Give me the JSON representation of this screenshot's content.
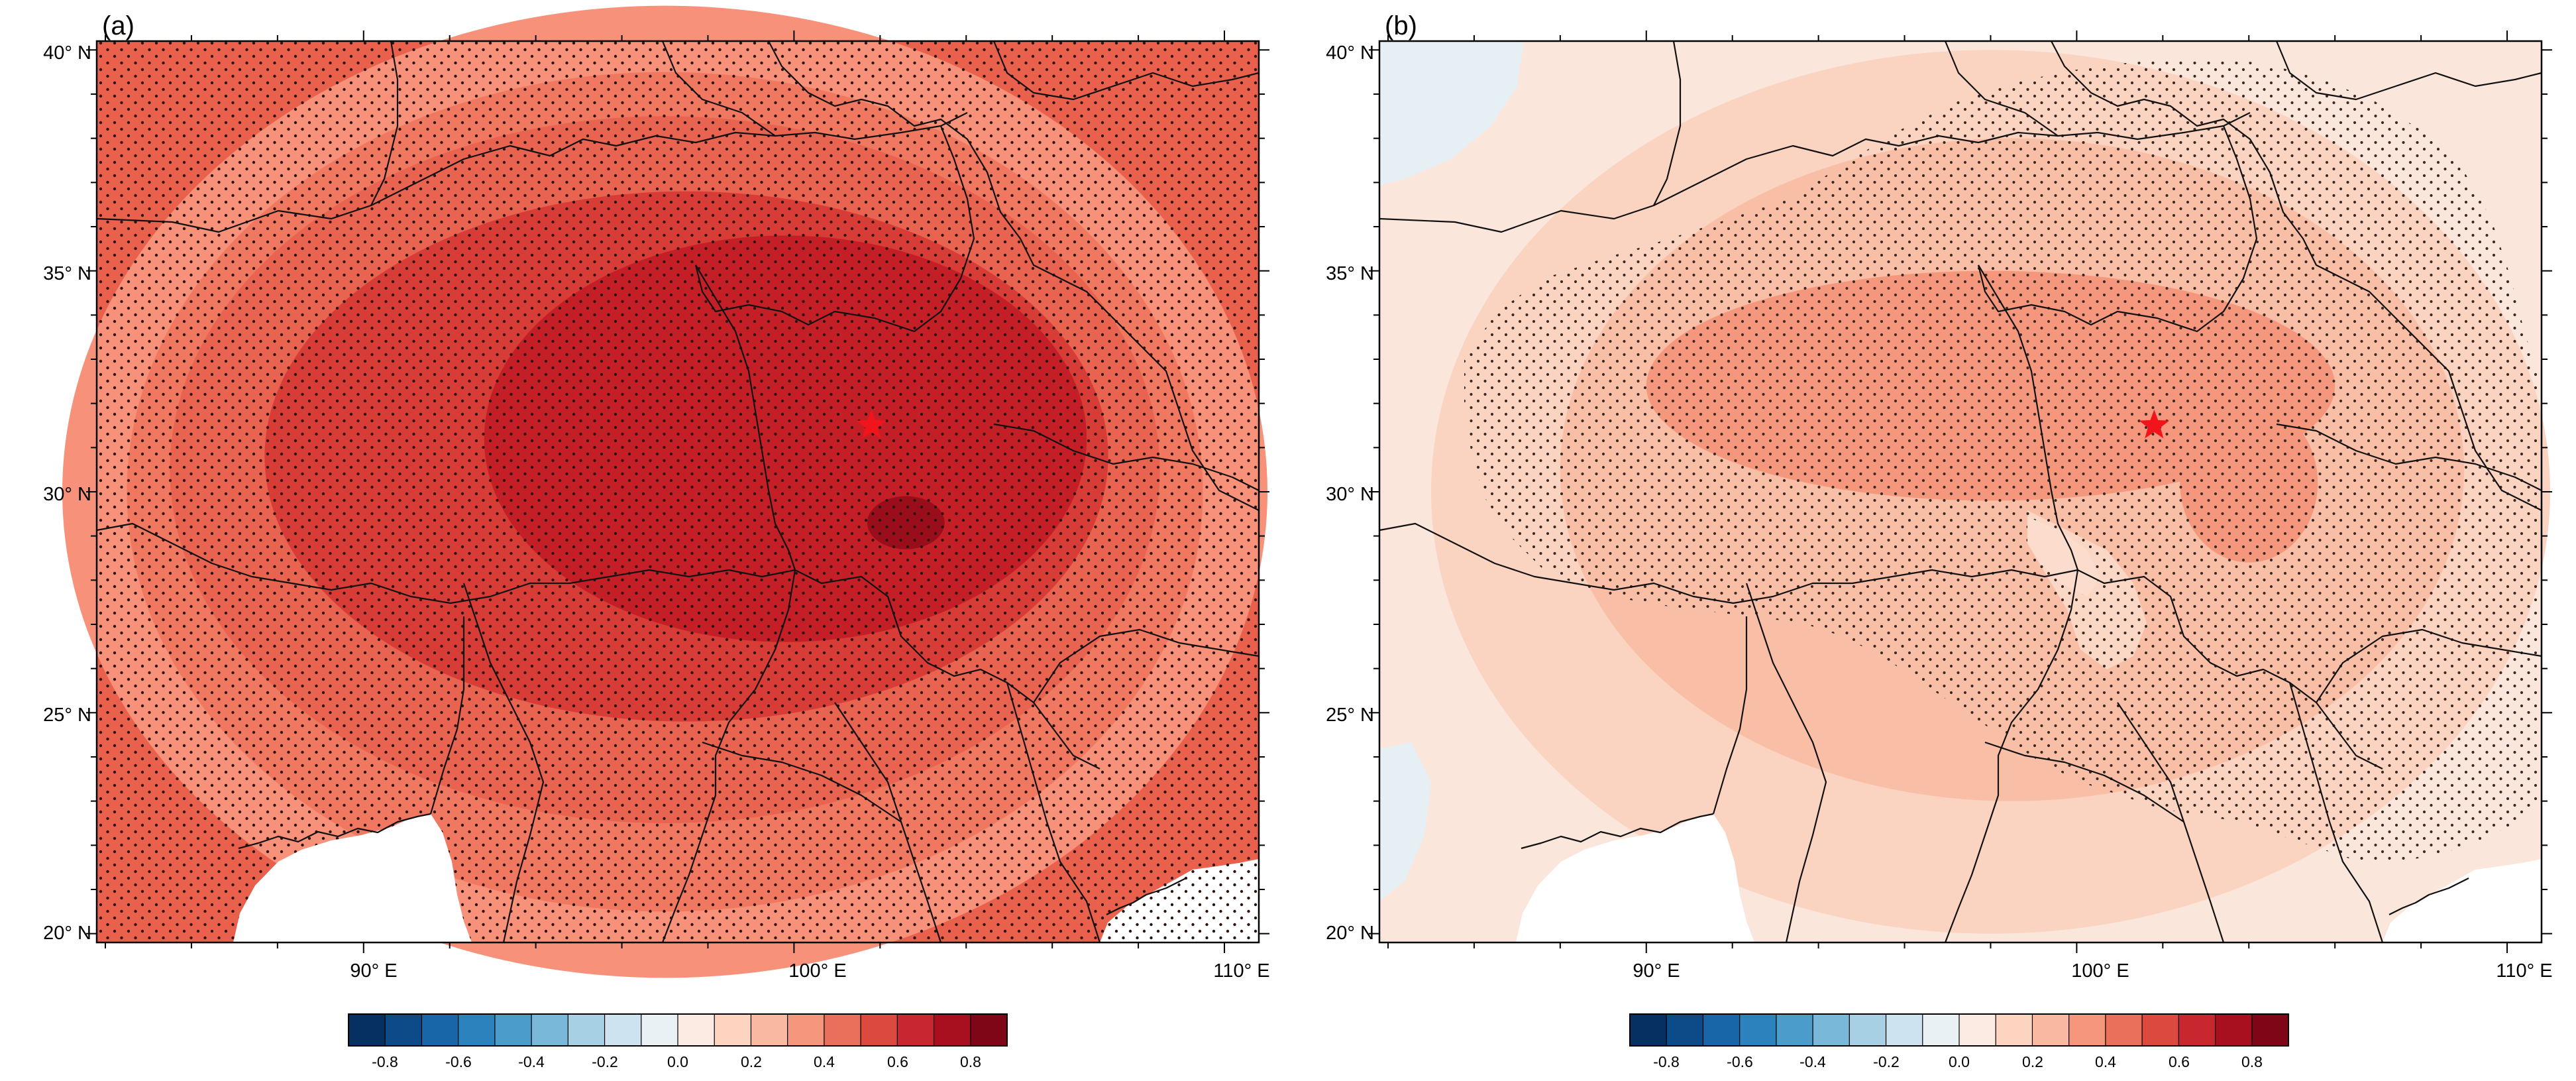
{
  "figure": {
    "panels": [
      {
        "id": "a",
        "label": "(a)",
        "lat_labels": [
          "40° N",
          "35° N",
          "30° N",
          "25° N",
          "20° N"
        ],
        "lon_labels": [
          "90° E",
          "100° E",
          "110° E"
        ],
        "lat_values": [
          40,
          35,
          30,
          25,
          20
        ],
        "lon_values": [
          90,
          100,
          110
        ],
        "lon_range": [
          83.8,
          110.8
        ],
        "lat_range": [
          19.8,
          40.2
        ],
        "marker": {
          "lon": 101.8,
          "lat": 31.5,
          "symbol": "star",
          "color": "#f2141b"
        },
        "base_color": "#e9604c",
        "field": [
          {
            "level": 0.3,
            "color": "#f79179",
            "lon": 97,
            "lat": 30,
            "rx": 14,
            "ry": 11
          },
          {
            "level": 0.4,
            "color": "#f07860",
            "lon": 97,
            "lat": 30,
            "rx": 12.5,
            "ry": 9.5
          },
          {
            "level": 0.5,
            "color": "#e96351",
            "lon": 97,
            "lat": 30.5,
            "rx": 11.5,
            "ry": 8
          },
          {
            "level": 0.6,
            "color": "#d83c36",
            "lon": 97.5,
            "lat": 30.8,
            "rx": 9.8,
            "ry": 6
          },
          {
            "level": 0.7,
            "color": "#c41f27",
            "lon": 99.8,
            "lat": 31.2,
            "rx": 7,
            "ry": 4.6
          },
          {
            "level": 0.8,
            "color": "#9a0e1c",
            "lon": 102.6,
            "lat": 29.3,
            "rx": 0.9,
            "ry": 0.6
          }
        ],
        "colorbar": {
          "tick_labels": [
            "-0.8",
            "-0.6",
            "-0.4",
            "-0.2",
            "0.0",
            "0.2",
            "0.4",
            "0.6",
            "0.8"
          ],
          "colors": [
            "#053061",
            "#0d4a88",
            "#1866a8",
            "#2b82bd",
            "#4b9ccb",
            "#79b8d9",
            "#a8d0e5",
            "#cde3ef",
            "#e9f1f5",
            "#fbebe3",
            "#fdd4c0",
            "#f9b8a0",
            "#f4977d",
            "#ea705b",
            "#dc4a3f",
            "#c92730",
            "#a8101f",
            "#7e0617"
          ]
        }
      },
      {
        "id": "b",
        "label": "(b)",
        "lat_labels": [
          "40° N",
          "35° N",
          "30° N",
          "25° N",
          "20° N"
        ],
        "lon_labels": [
          "90° E",
          "100° E",
          "110° E"
        ],
        "lat_values": [
          40,
          35,
          30,
          25,
          20
        ],
        "lon_values": [
          90,
          100,
          110
        ],
        "lon_range": [
          83.8,
          110.8
        ],
        "lat_range": [
          19.8,
          40.2
        ],
        "marker": {
          "lon": 101.8,
          "lat": 31.5,
          "symbol": "star",
          "color": "#f2141b"
        },
        "base_color": "#fbe6dc",
        "field": [
          {
            "level": 0.1,
            "color": "#fbd3c1",
            "lon": 98,
            "lat": 30,
            "rx": 13,
            "ry": 10
          },
          {
            "level": 0.2,
            "color": "#f9bea6",
            "lon": 98.5,
            "lat": 30.5,
            "rx": 10.5,
            "ry": 7.5
          },
          {
            "level": 0.3,
            "color": "#f4977d",
            "lon": 98,
            "lat": 32.4,
            "rx": 8,
            "ry": 2.6
          },
          {
            "level": 0.3,
            "color": "#f4977d",
            "lon": 104,
            "lat": 30.2,
            "rx": 1.6,
            "ry": 1.8
          }
        ],
        "colorbar": {
          "tick_labels": [
            "-0.8",
            "-0.6",
            "-0.4",
            "-0.2",
            "0.0",
            "0.2",
            "0.4",
            "0.6",
            "0.8"
          ],
          "colors": [
            "#053061",
            "#0d4a88",
            "#1866a8",
            "#2b82bd",
            "#4b9ccb",
            "#79b8d9",
            "#a8d0e5",
            "#cde3ef",
            "#e9f1f5",
            "#fbebe3",
            "#fdd4c0",
            "#f9b8a0",
            "#f4977d",
            "#ea705b",
            "#dc4a3f",
            "#c92730",
            "#a8101f",
            "#7e0617"
          ]
        }
      }
    ]
  }
}
